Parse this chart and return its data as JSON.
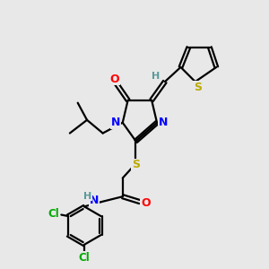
{
  "background_color": "#e8e8e8",
  "atom_colors": {
    "C": "#000000",
    "N": "#0000ff",
    "O": "#ff0000",
    "S": "#bbaa00",
    "Cl": "#00aa00",
    "H": "#5a9a9a"
  },
  "figsize": [
    3.0,
    3.0
  ],
  "dpi": 100
}
